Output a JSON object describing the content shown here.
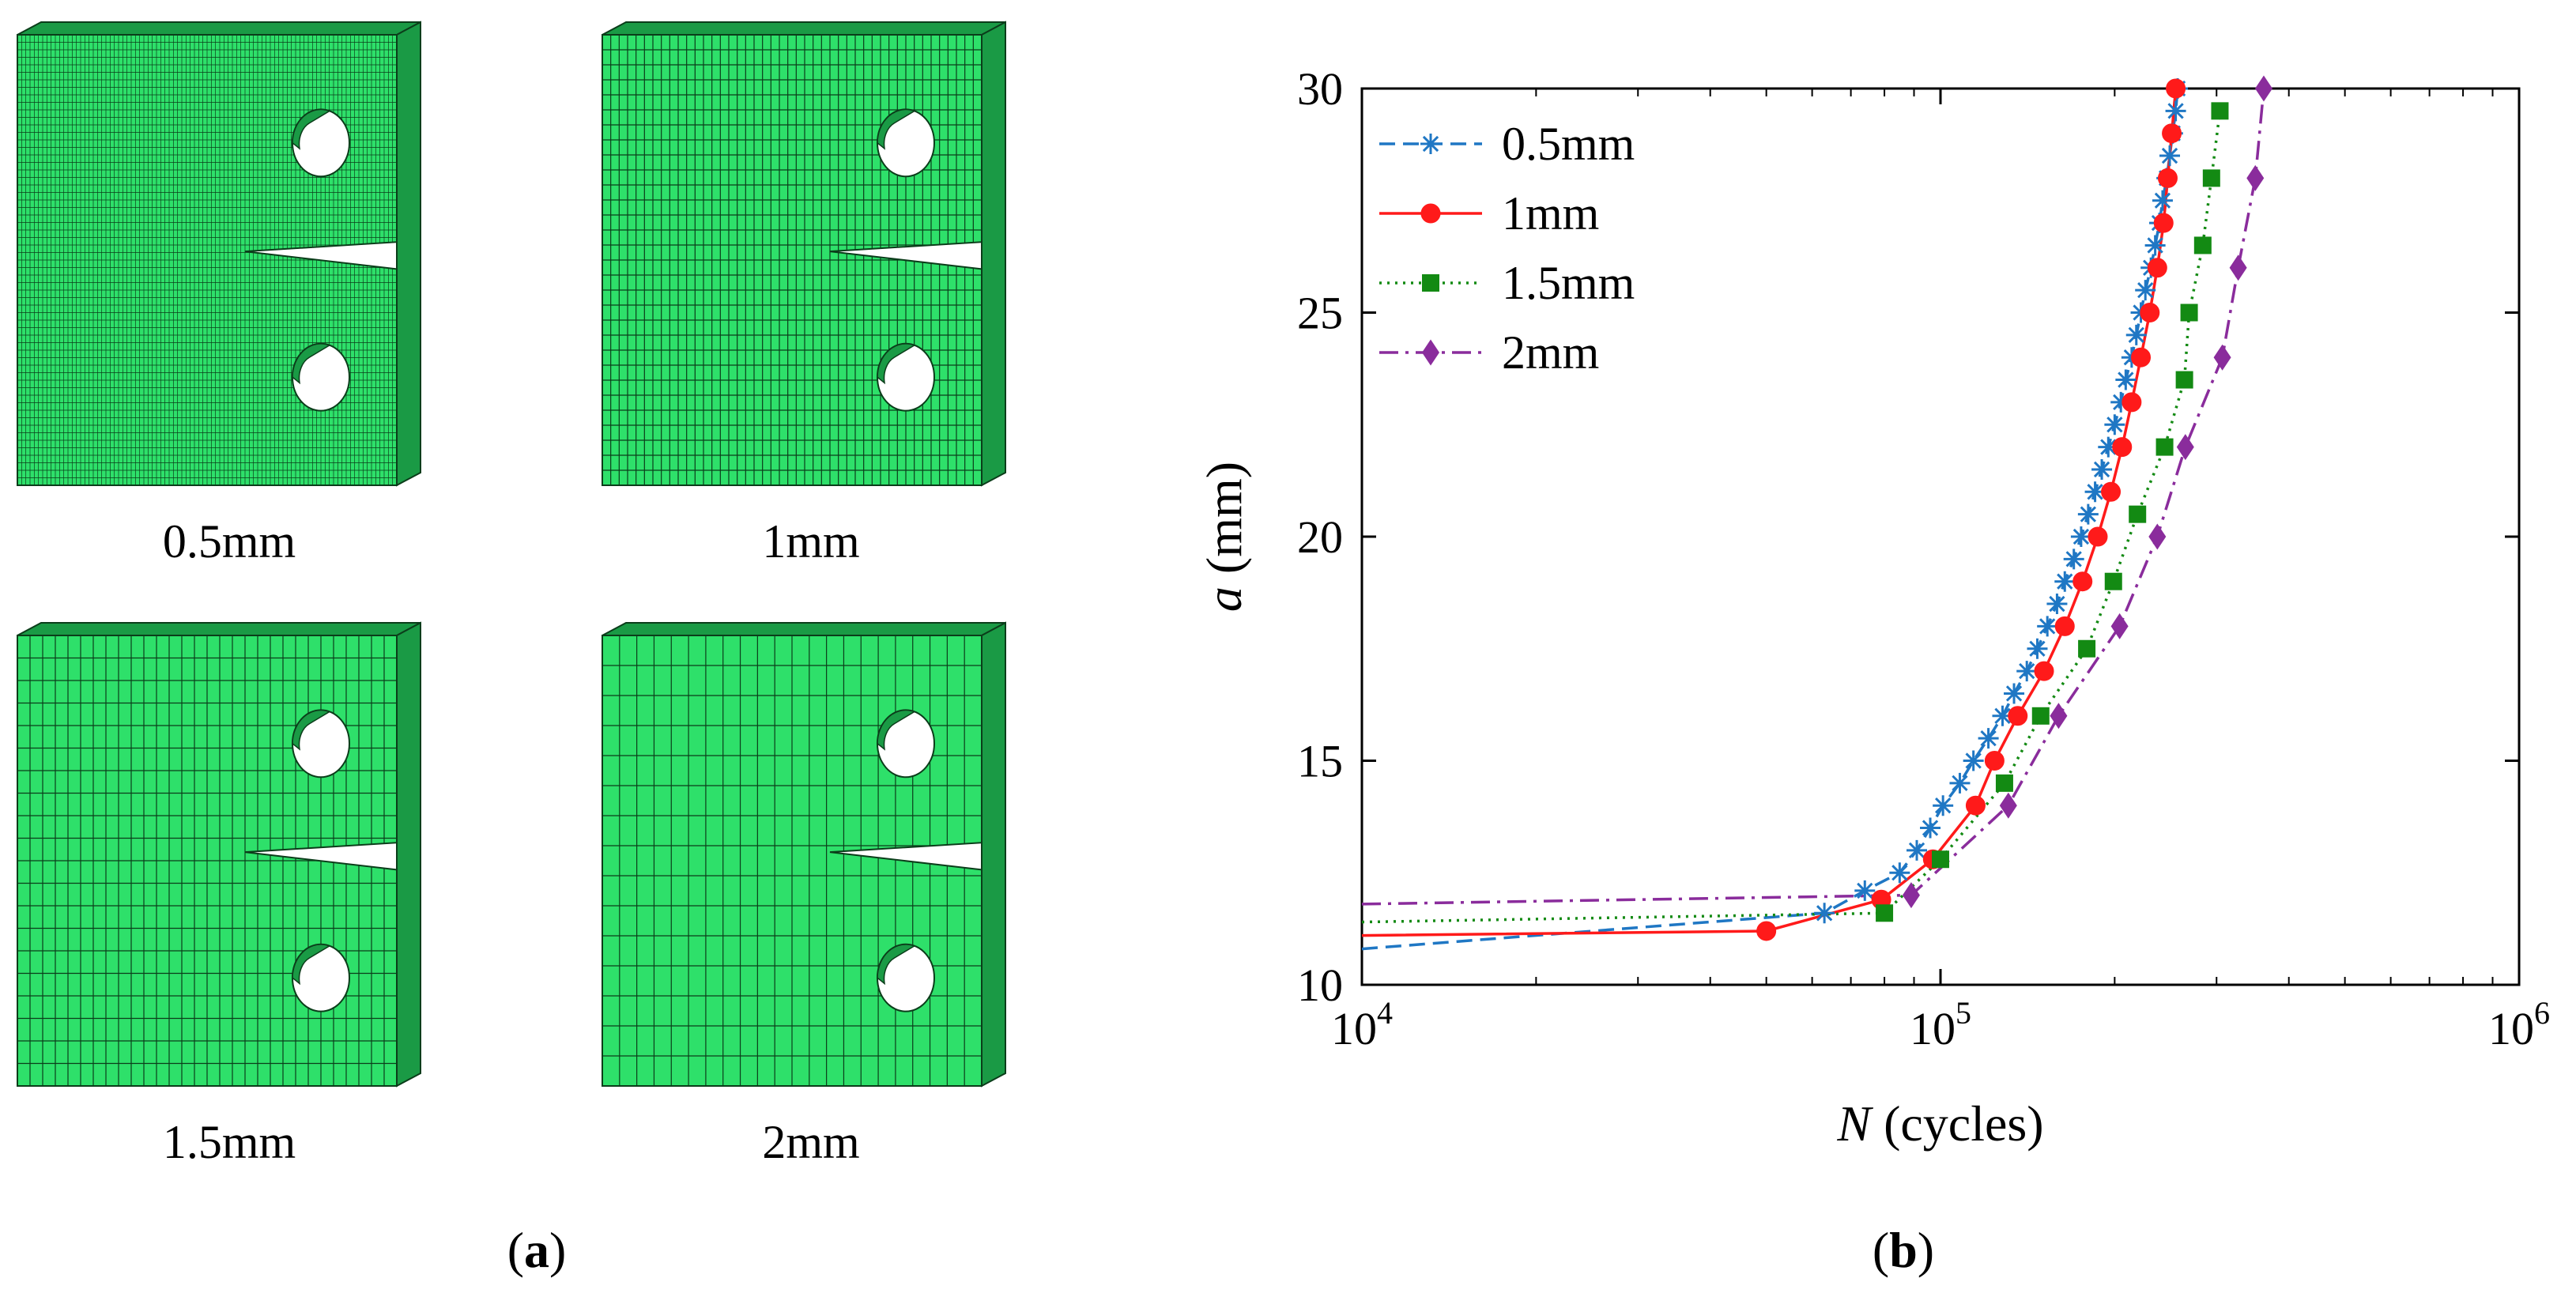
{
  "panel_a": {
    "panel_label": "a",
    "meshes": [
      {
        "label": "0.5mm",
        "cell_count_x": 90,
        "cell_count_y": 60
      },
      {
        "label": "1mm",
        "cell_count_x": 45,
        "cell_count_y": 30
      },
      {
        "label": "1.5mm",
        "cell_count_x": 30,
        "cell_count_y": 20
      },
      {
        "label": "2mm",
        "cell_count_x": 22,
        "cell_count_y": 15
      }
    ],
    "colors": {
      "mesh_fill": "#2ee06a",
      "mesh_side": "#1a9a45",
      "mesh_line": "#0b3d1a"
    }
  },
  "panel_b": {
    "panel_label": "b",
    "chart_data": {
      "type": "line",
      "xscale": "log",
      "xlim": [
        10000,
        1000000
      ],
      "ylim": [
        10,
        30
      ],
      "x_ticks": [
        {
          "value": 10000,
          "base": "10",
          "exp": "4"
        },
        {
          "value": 100000,
          "base": "10",
          "exp": "5"
        },
        {
          "value": 1000000,
          "base": "10",
          "exp": "6"
        }
      ],
      "y_ticks": [
        10,
        15,
        20,
        25,
        30
      ],
      "xlabel_italic": "N",
      "xlabel_rest": " (cycles)",
      "ylabel_italic": "a",
      "ylabel_rest": " (mm)",
      "legend_position": "top-left",
      "series": [
        {
          "name": "0.5mm",
          "color": "#1f77c4",
          "dash": "20,10",
          "marker": "asterisk",
          "points": [
            [
              10000,
              10.8
            ],
            [
              63000,
              11.6
            ],
            [
              74000,
              12.1
            ],
            [
              85000,
              12.5
            ],
            [
              91000,
              13.0
            ],
            [
              96000,
              13.5
            ],
            [
              101000,
              14.0
            ],
            [
              108000,
              14.5
            ],
            [
              114000,
              15.0
            ],
            [
              121000,
              15.5
            ],
            [
              128000,
              16.0
            ],
            [
              134000,
              16.5
            ],
            [
              141000,
              17.0
            ],
            [
              147000,
              17.5
            ],
            [
              153000,
              18.0
            ],
            [
              159000,
              18.5
            ],
            [
              164000,
              19.0
            ],
            [
              170000,
              19.5
            ],
            [
              175000,
              20.0
            ],
            [
              180000,
              20.5
            ],
            [
              185000,
              21.0
            ],
            [
              190000,
              21.5
            ],
            [
              195000,
              22.0
            ],
            [
              200000,
              22.5
            ],
            [
              205000,
              23.0
            ],
            [
              209000,
              23.5
            ],
            [
              214000,
              24.0
            ],
            [
              218000,
              24.5
            ],
            [
              222000,
              25.0
            ],
            [
              226000,
              25.5
            ],
            [
              231000,
              26.0
            ],
            [
              235000,
              26.5
            ],
            [
              239000,
              27.0
            ],
            [
              242000,
              27.5
            ],
            [
              246000,
              28.0
            ],
            [
              249000,
              28.5
            ],
            [
              252000,
              29.0
            ],
            [
              255000,
              29.5
            ],
            [
              257000,
              30.0
            ]
          ]
        },
        {
          "name": "1mm",
          "color": "#ff1a1a",
          "dash": "",
          "marker": "circle",
          "points": [
            [
              10000,
              11.1
            ],
            [
              50000,
              11.2
            ],
            [
              79000,
              11.9
            ],
            [
              97000,
              12.8
            ],
            [
              115000,
              14.0
            ],
            [
              124000,
              15.0
            ],
            [
              136000,
              16.0
            ],
            [
              151000,
              17.0
            ],
            [
              164000,
              18.0
            ],
            [
              176000,
              19.0
            ],
            [
              187000,
              20.0
            ],
            [
              197000,
              21.0
            ],
            [
              206000,
              22.0
            ],
            [
              214000,
              23.0
            ],
            [
              222000,
              24.0
            ],
            [
              230000,
              25.0
            ],
            [
              237000,
              26.0
            ],
            [
              243000,
              27.0
            ],
            [
              247000,
              28.0
            ],
            [
              251000,
              29.0
            ],
            [
              255000,
              30.0
            ]
          ]
        },
        {
          "name": "1.5mm",
          "color": "#138a13",
          "dash": "3,7",
          "marker": "square",
          "points": [
            [
              10000,
              11.4
            ],
            [
              80000,
              11.6
            ],
            [
              100000,
              12.8
            ],
            [
              129000,
              14.5
            ],
            [
              149000,
              16.0
            ],
            [
              179000,
              17.5
            ],
            [
              199000,
              19.0
            ],
            [
              219000,
              20.5
            ],
            [
              244000,
              22.0
            ],
            [
              264000,
              23.5
            ],
            [
              269000,
              25.0
            ],
            [
              284000,
              26.5
            ],
            [
              294000,
              28.0
            ],
            [
              304000,
              29.5
            ]
          ]
        },
        {
          "name": "2mm",
          "color": "#8a2c9c",
          "dash": "24,9,4,9",
          "marker": "diamond",
          "points": [
            [
              10000,
              11.8
            ],
            [
              89000,
              12.0
            ],
            [
              131000,
              14.0
            ],
            [
              160000,
              16.0
            ],
            [
              204000,
              18.0
            ],
            [
              237000,
              20.0
            ],
            [
              265000,
              22.0
            ],
            [
              307000,
              24.0
            ],
            [
              327000,
              26.0
            ],
            [
              350000,
              28.0
            ],
            [
              362000,
              30.0
            ]
          ]
        }
      ]
    }
  }
}
